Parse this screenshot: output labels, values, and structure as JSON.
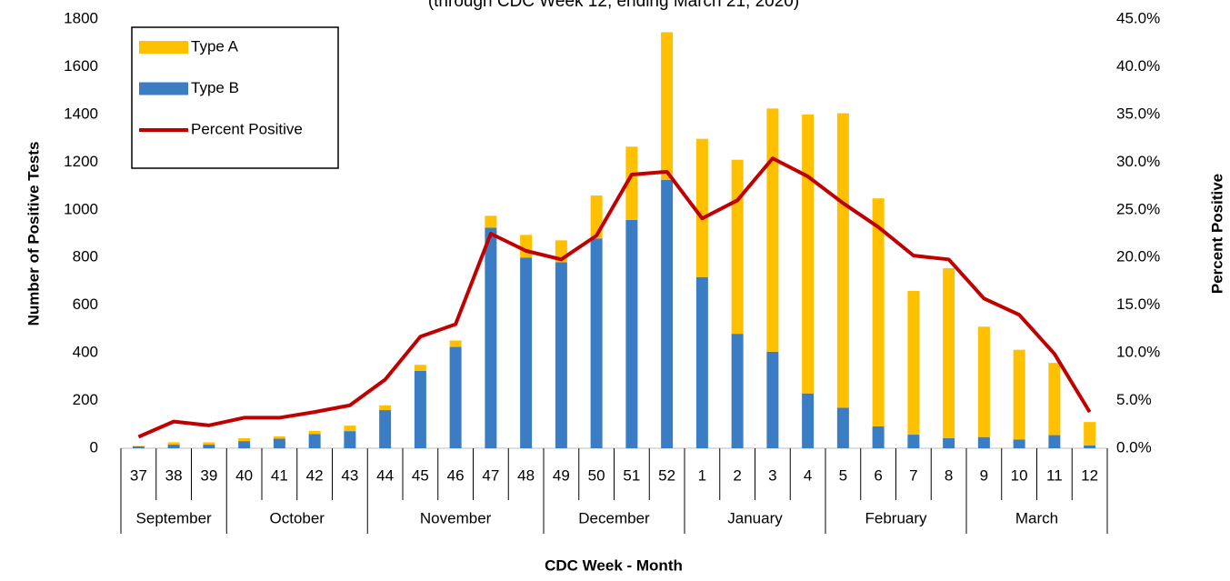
{
  "chart_data": {
    "type": "bar",
    "subtitle": "(through CDC Week 12, ending March 21, 2020)",
    "x_label": "CDC Week - Month",
    "y_label": "Number of Positive Tests",
    "y2_label": "Percent Positive",
    "categories": [
      "37",
      "38",
      "39",
      "40",
      "41",
      "42",
      "43",
      "44",
      "45",
      "46",
      "47",
      "48",
      "49",
      "50",
      "51",
      "52",
      "1",
      "2",
      "3",
      "4",
      "5",
      "6",
      "7",
      "8",
      "9",
      "10",
      "11",
      "12"
    ],
    "months": [
      {
        "name": "September",
        "span": 3
      },
      {
        "name": "October",
        "span": 4
      },
      {
        "name": "November",
        "span": 5
      },
      {
        "name": "December",
        "span": 4
      },
      {
        "name": "January",
        "span": 4
      },
      {
        "name": "February",
        "span": 4
      },
      {
        "name": "March",
        "span": 4
      }
    ],
    "series": [
      {
        "name": "Type A",
        "type": "bar",
        "color": "#ffc000",
        "values": [
          2,
          10,
          10,
          12,
          10,
          13,
          23,
          20,
          25,
          27,
          50,
          95,
          92,
          180,
          307,
          620,
          580,
          730,
          1020,
          1170,
          1235,
          956,
          603,
          713,
          463,
          376,
          303,
          98
        ]
      },
      {
        "name": "Type B",
        "type": "bar",
        "color": "#3b7dc4",
        "values": [
          8,
          15,
          15,
          30,
          40,
          60,
          72,
          160,
          325,
          425,
          925,
          800,
          780,
          880,
          958,
          1125,
          718,
          480,
          405,
          230,
          170,
          92,
          57,
          42,
          47,
          37,
          55,
          12
        ]
      },
      {
        "name": "Percent Positive",
        "type": "line",
        "axis": "y2",
        "color": "#c00000",
        "values": [
          1.2,
          2.8,
          2.4,
          3.2,
          3.2,
          3.8,
          4.5,
          7.2,
          11.7,
          13.0,
          22.5,
          20.7,
          19.8,
          22.3,
          28.7,
          29.0,
          24.1,
          26.0,
          30.4,
          28.5,
          25.7,
          23.2,
          20.2,
          19.8,
          15.7,
          14.0,
          9.9,
          3.8
        ]
      }
    ],
    "stacked": true,
    "ylim": [
      0,
      1800
    ],
    "yticks": [
      0,
      200,
      400,
      600,
      800,
      1000,
      1200,
      1400,
      1600,
      1800
    ],
    "y2lim": [
      0,
      45
    ],
    "y2ticks": [
      {
        "value": 0,
        "label": "0.0%"
      },
      {
        "value": 5,
        "label": "5.0%"
      },
      {
        "value": 10,
        "label": "10.0%"
      },
      {
        "value": 15,
        "label": "15.0%"
      },
      {
        "value": 20,
        "label": "20.0%"
      },
      {
        "value": 25,
        "label": "25.0%"
      },
      {
        "value": 30,
        "label": "30.0%"
      },
      {
        "value": 35,
        "label": "35.0%"
      },
      {
        "value": 40,
        "label": "40.0%"
      },
      {
        "value": 45,
        "label": "45.0%"
      }
    ],
    "grid": false,
    "legend": "top-left"
  }
}
